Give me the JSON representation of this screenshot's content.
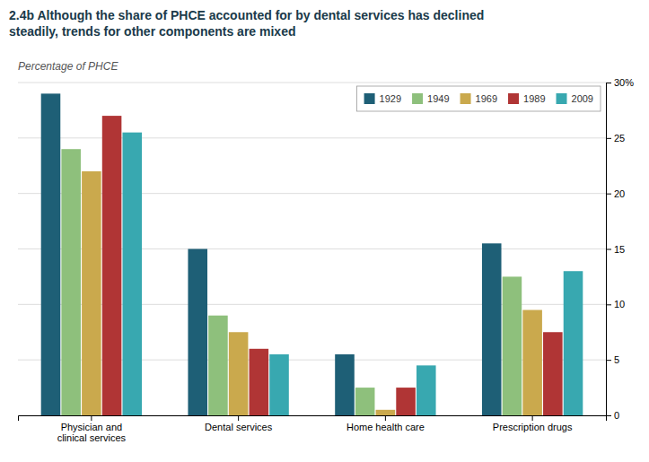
{
  "chart_data": {
    "type": "bar",
    "title": "2.4b Although the share of PHCE accounted for by dental services has declined\nsteadily, trends for other components are mixed",
    "ylabel": "Percentage of PHCE",
    "categories": [
      "Physician and\nclinical services",
      "Dental services",
      "Home health care",
      "Prescription drugs"
    ],
    "series": [
      {
        "name": "1929",
        "color": "#1e5f76",
        "values": [
          29.0,
          15.0,
          5.5,
          15.5
        ]
      },
      {
        "name": "1949",
        "color": "#8ec07c",
        "values": [
          24.0,
          9.0,
          2.5,
          12.5
        ]
      },
      {
        "name": "1969",
        "color": "#caa94d",
        "values": [
          22.0,
          7.5,
          0.5,
          9.5
        ]
      },
      {
        "name": "1989",
        "color": "#b03535",
        "values": [
          27.0,
          6.0,
          2.5,
          7.5
        ]
      },
      {
        "name": "2009",
        "color": "#38a8b0",
        "values": [
          25.5,
          5.5,
          4.5,
          13.0
        ]
      }
    ],
    "ylim": [
      0,
      30
    ],
    "yticks": [
      0,
      5,
      10,
      15,
      20,
      25,
      {
        "value": 30,
        "label": "30%"
      }
    ],
    "grid": true,
    "legend": "top-right"
  }
}
